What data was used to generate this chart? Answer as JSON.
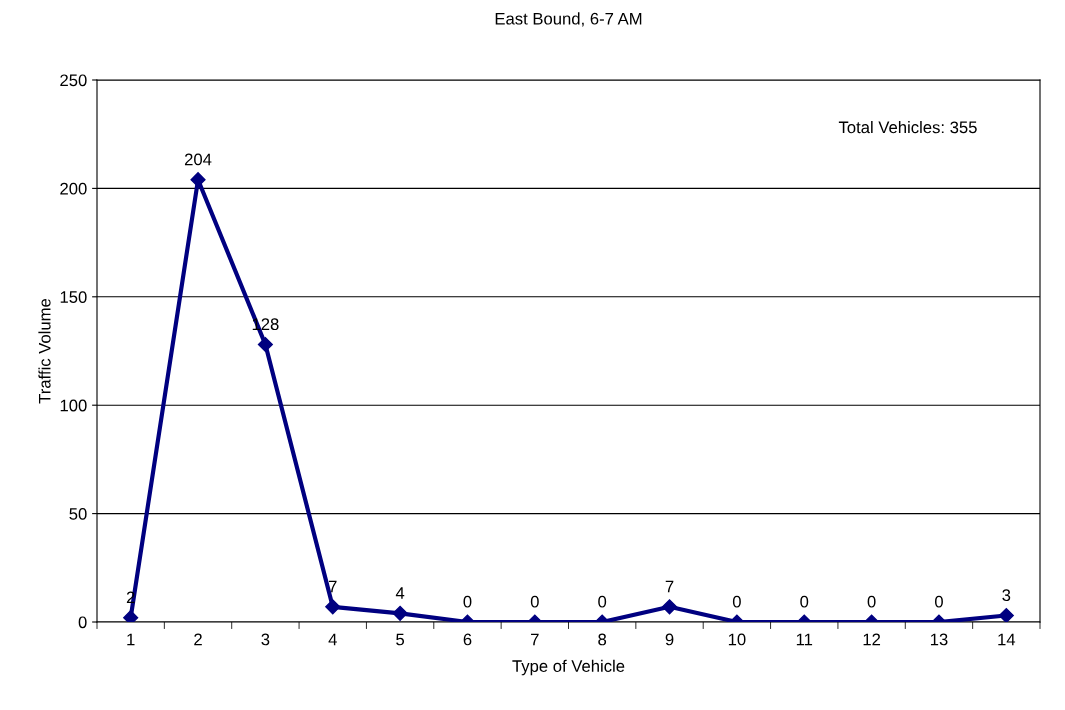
{
  "chart_data": {
    "type": "line",
    "title": "East Bound, 6-7 AM",
    "xlabel": "Type of Vehicle",
    "ylabel": "Traffic Volume",
    "categories": [
      "1",
      "2",
      "3",
      "4",
      "5",
      "6",
      "7",
      "8",
      "9",
      "10",
      "11",
      "12",
      "13",
      "14"
    ],
    "series": [
      {
        "color": "#000080",
        "values": [
          2,
          204,
          128,
          7,
          4,
          0,
          0,
          0,
          7,
          0,
          0,
          0,
          0,
          3
        ]
      }
    ],
    "ylim": [
      0,
      250
    ],
    "yticks": [
      0,
      50,
      100,
      150,
      200,
      250
    ],
    "grid": "y",
    "marker": "diamond",
    "line_style": "solid",
    "data_labels": true,
    "annotations": [
      "Total Vehicles: 355"
    ]
  }
}
